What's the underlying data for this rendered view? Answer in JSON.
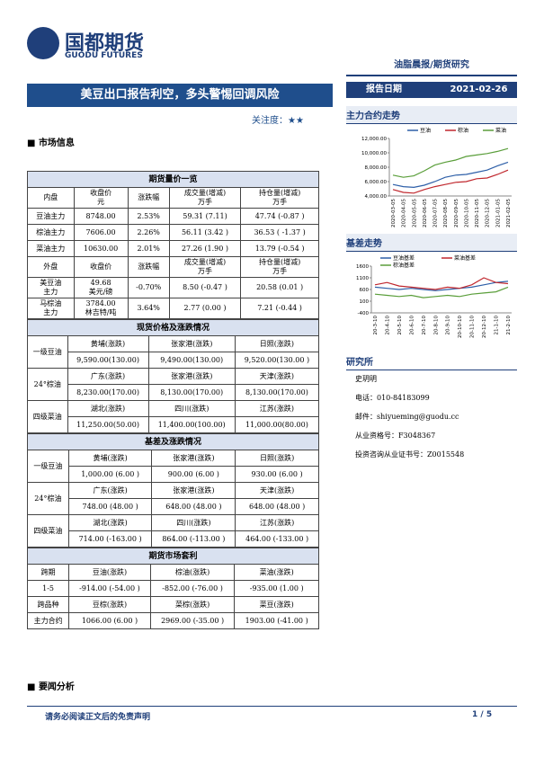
{
  "header": {
    "logo": "国都期货",
    "logo_en": "GUODU FUTURES",
    "tag": "油脂晨报/期货研究",
    "title": "美豆出口报告利空，多头警惕回调风险",
    "attention": "关注度：★★",
    "date_label": "报告日期",
    "date": "2021-02-26"
  },
  "sections": {
    "market": "市场信息",
    "news": "要闻分析"
  },
  "tables": [
    {
      "title": "期货量价一览",
      "rows": [
        [
          "内盘",
          "收盘价\n元",
          "涨跌幅",
          "成交量(增减)\n万手",
          "持仓量(增减)\n万手"
        ],
        [
          "豆油主力",
          "8748.00",
          "2.53%",
          "59.31 (7.11)",
          "47.74 (-0.87 )"
        ],
        [
          "棕油主力",
          "7606.00",
          "2.26%",
          "56.11 (3.42 )",
          "36.53 ( -1.37 )"
        ],
        [
          "菜油主力",
          "10630.00",
          "2.01%",
          "27.26 (1.90 )",
          "13.79 (-0.54 )"
        ],
        [
          "外盘",
          "收盘价",
          "涨跌幅",
          "成交量(增减)\n万手",
          "持仓量(增减)\n万手"
        ],
        [
          "美豆油\n主力",
          "49.68\n美元/磅",
          "-0.70%",
          "8.50 (-0.47 )",
          "20.58 (0.01 )"
        ],
        [
          "马棕油\n主力",
          "3784.00\n林吉特/吨",
          "3.64%",
          "2.77 (0.00 )",
          "7.21 (-0.44 )"
        ]
      ]
    },
    {
      "title": "现货价格及涨跌情况",
      "groups": [
        {
          "name": "一级豆油",
          "heads": [
            "黄埔(涨跌)",
            "张家港(涨跌)",
            "日照(涨跌)"
          ],
          "values": [
            "9,590.00(130.00)",
            "9,490.00(130.00)",
            "9,520.00(130.00 )"
          ]
        },
        {
          "name": "24°棕油",
          "heads": [
            "广东(涨跌)",
            "张家港(涨跌)",
            "天津(涨跌)"
          ],
          "values": [
            "8,230.00(170.00)",
            "8,130.00(170.00)",
            "8,130.00(170.00)"
          ]
        },
        {
          "name": "四级菜油",
          "heads": [
            "湖北(涨跌)",
            "四川(涨跌)",
            "江苏(涨跌)"
          ],
          "values": [
            "11,250.00(50.00)",
            "11,400.00(100.00)",
            "11,000.00(80.00)"
          ]
        }
      ]
    },
    {
      "title": "基差及涨跌情况",
      "groups": [
        {
          "name": "一级豆油",
          "heads": [
            "黄埔(涨跌)",
            "张家港(涨跌)",
            "日照(涨跌)"
          ],
          "values": [
            "1,000.00 (6.00 )",
            "900.00 (6.00 )",
            "930.00 (6.00 )"
          ]
        },
        {
          "name": "24°棕油",
          "heads": [
            "广东(涨跌)",
            "张家港(涨跌)",
            "天津(涨跌)"
          ],
          "values": [
            "748.00 (48.00 )",
            "648.00 (48.00 )",
            "648.00 (48.00 )"
          ]
        },
        {
          "name": "四级菜油",
          "heads": [
            "湖北(涨跌)",
            "四川(涨跌)",
            "江苏(涨跌)"
          ],
          "values": [
            "714.00 (-163.00 )",
            "864.00 (-113.00 )",
            "464.00 (-133.00 )"
          ]
        }
      ]
    },
    {
      "title": "期货市场套利",
      "rows": [
        [
          "跨期",
          "豆油(涨跌)",
          "棕油(涨跌)",
          "菜油(涨跌)"
        ],
        [
          "1-5",
          "-914.00 (-54.00 )",
          "-852.00 (-76.00 )",
          "-935.00 (1.00 )"
        ],
        [
          "跨品种",
          "豆棕(涨跌)",
          "菜棕(涨跌)",
          "菜豆(涨跌)"
        ],
        [
          "主力合约",
          "1066.00 (6.00 )",
          "2969.00 (-35.00 )",
          "1903.00 (-41.00 )"
        ]
      ]
    }
  ],
  "sidebar": {
    "charts": [
      {
        "heading": "主力合约走势",
        "type": "line",
        "categories": [
          "2020-03-05",
          "2020-04-05",
          "2020-05-05",
          "2020-06-05",
          "2020-07-05",
          "2020-08-05",
          "2020-09-05",
          "2020-10-05",
          "2020-11-05",
          "2020-12-05",
          "2021-01-05",
          "2021-02-05"
        ],
        "series": [
          {
            "name": "豆油",
            "color": "#2e5fa8",
            "values": [
              5600,
              5300,
              5200,
              5500,
              6000,
              6600,
              6900,
              7000,
              7300,
              7600,
              8200,
              8700
            ]
          },
          {
            "name": "棕油",
            "color": "#c0272d",
            "values": [
              4900,
              4500,
              4400,
              4900,
              5300,
              5600,
              5900,
              6000,
              6400,
              6500,
              7000,
              7600
            ]
          },
          {
            "name": "菜油",
            "color": "#5a9e3a",
            "values": [
              6900,
              6600,
              6800,
              7500,
              8300,
              8700,
              9000,
              9500,
              9700,
              9900,
              10200,
              10600
            ]
          }
        ],
        "ylim": [
          4000,
          12000
        ],
        "yticks": [
          {
            "value": 4000,
            "label": "4,000.00"
          },
          {
            "value": 6000,
            "label": "6,000.00"
          },
          {
            "value": 8000,
            "label": "8,000.00"
          },
          {
            "value": 10000,
            "label": "10,000.00"
          },
          {
            "value": 12000,
            "label": "12,000.00"
          }
        ]
      },
      {
        "heading": "基差走势",
        "type": "line",
        "categories": [
          "20-3-10",
          "20-4-10",
          "20-5-10",
          "20-6-10",
          "20-7-10",
          "20-8-10",
          "20-9-10",
          "20-10-10",
          "20-11-10",
          "20-12-10",
          "21-1-10",
          "21-2-10"
        ],
        "series": [
          {
            "name": "豆油基差",
            "color": "#2e5fa8",
            "values": [
              700,
              650,
              600,
              650,
              600,
              550,
              600,
              650,
              700,
              800,
              900,
              950
            ]
          },
          {
            "name": "菜油基差",
            "color": "#c0272d",
            "values": [
              800,
              900,
              750,
              700,
              650,
              600,
              700,
              650,
              800,
              1100,
              900,
              850
            ]
          },
          {
            "name": "棕油基差",
            "color": "#5a9e3a",
            "values": [
              400,
              350,
              300,
              350,
              250,
              300,
              350,
              300,
              400,
              450,
              500,
              700
            ]
          }
        ],
        "ylim": [
          -400,
          1600
        ],
        "yticks": [
          -400,
          100,
          600,
          1100,
          1600
        ]
      }
    ],
    "institute": "研究所",
    "analyst": "史玥明",
    "contacts": [
      "电话：010-84183099",
      "邮件：shiyueming@guodu.cc",
      "从业资格号：F3048367",
      "投资咨询从业证书号：Z0015548"
    ]
  },
  "footer": {
    "disclaimer": "请务必阅读正文后的免责声明",
    "page": "1 / 5"
  }
}
